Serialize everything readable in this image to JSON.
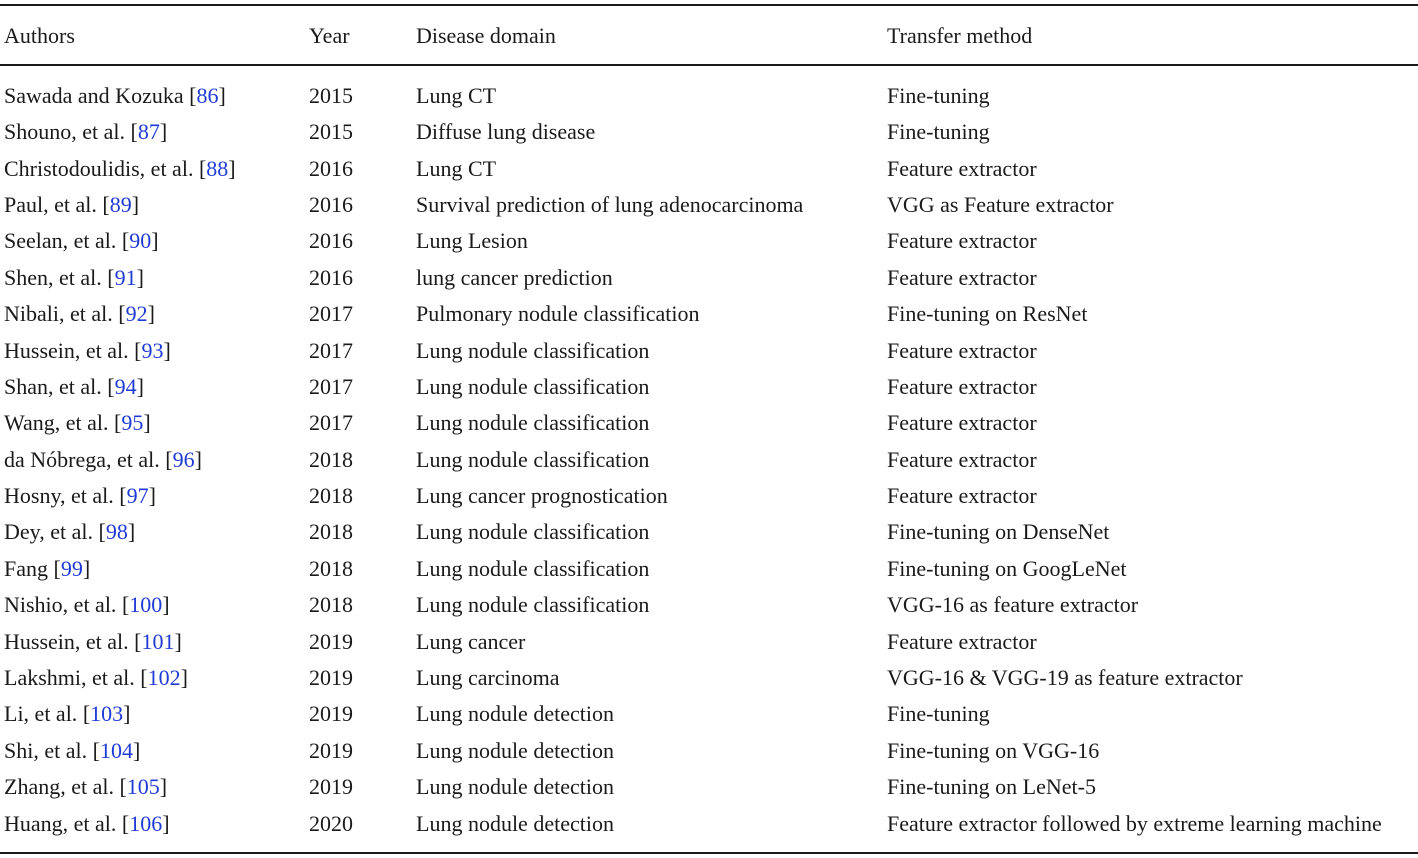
{
  "table": {
    "headers": [
      "Authors",
      "Year",
      "Disease domain",
      "Transfer method"
    ],
    "rows": [
      {
        "author": "Sawada and Kozuka",
        "ref": "86",
        "year": "2015",
        "domain": "Lung CT",
        "method": "Fine-tuning"
      },
      {
        "author": "Shouno, et al.",
        "ref": "87",
        "year": "2015",
        "domain": "Diffuse lung disease",
        "method": "Fine-tuning"
      },
      {
        "author": "Christodoulidis, et al.",
        "ref": "88",
        "year": "2016",
        "domain": "Lung CT",
        "method": "Feature extractor"
      },
      {
        "author": "Paul, et al.",
        "ref": "89",
        "year": "2016",
        "domain": "Survival prediction of lung adenocarcinoma",
        "method": "VGG as Feature extractor"
      },
      {
        "author": "Seelan, et al.",
        "ref": "90",
        "year": "2016",
        "domain": "Lung Lesion",
        "method": "Feature extractor"
      },
      {
        "author": "Shen, et al.",
        "ref": "91",
        "year": "2016",
        "domain": "lung cancer prediction",
        "method": "Feature extractor"
      },
      {
        "author": "Nibali, et al.",
        "ref": "92",
        "year": "2017",
        "domain": "Pulmonary nodule classification",
        "method": "Fine-tuning on ResNet"
      },
      {
        "author": "Hussein, et al.",
        "ref": "93",
        "year": "2017",
        "domain": "Lung nodule classification",
        "method": "Feature extractor"
      },
      {
        "author": "Shan, et al.",
        "ref": "94",
        "year": "2017",
        "domain": "Lung nodule classification",
        "method": "Feature extractor"
      },
      {
        "author": "Wang, et al.",
        "ref": "95",
        "year": "2017",
        "domain": "Lung nodule classification",
        "method": "Feature extractor"
      },
      {
        "author": "da Nóbrega, et al.",
        "ref": "96",
        "year": "2018",
        "domain": "Lung nodule classification",
        "method": "Feature extractor"
      },
      {
        "author": "Hosny, et al.",
        "ref": "97",
        "year": "2018",
        "domain": "Lung cancer prognostication",
        "method": "Feature extractor"
      },
      {
        "author": "Dey, et al.",
        "ref": "98",
        "year": "2018",
        "domain": "Lung nodule classification",
        "method": "Fine-tuning on DenseNet"
      },
      {
        "author": "Fang",
        "ref": "99",
        "year": "2018",
        "domain": "Lung nodule classification",
        "method": "Fine-tuning on GoogLeNet"
      },
      {
        "author": "Nishio, et al.",
        "ref": "100",
        "year": "2018",
        "domain": "Lung nodule classification",
        "method": "VGG-16 as feature extractor"
      },
      {
        "author": "Hussein, et al.",
        "ref": "101",
        "year": "2019",
        "domain": "Lung cancer",
        "method": "Feature extractor"
      },
      {
        "author": "Lakshmi, et al.",
        "ref": "102",
        "year": "2019",
        "domain": "Lung carcinoma",
        "method": "VGG-16 & VGG-19 as feature extractor"
      },
      {
        "author": "Li, et al.",
        "ref": "103",
        "year": "2019",
        "domain": "Lung nodule detection",
        "method": "Fine-tuning"
      },
      {
        "author": "Shi, et al.",
        "ref": "104",
        "year": "2019",
        "domain": "Lung nodule detection",
        "method": "Fine-tuning on VGG-16"
      },
      {
        "author": "Zhang, et al.",
        "ref": "105",
        "year": "2019",
        "domain": "Lung nodule detection",
        "method": "Fine-tuning on LeNet-5"
      },
      {
        "author": "Huang, et al.",
        "ref": "106",
        "year": "2020",
        "domain": "Lung nodule detection",
        "method": "Feature extractor followed by extreme learning machine"
      }
    ]
  },
  "colors": {
    "text": "#1a1a1a",
    "reference_link": "#1f3bd6",
    "rule": "#1a1a1a"
  }
}
